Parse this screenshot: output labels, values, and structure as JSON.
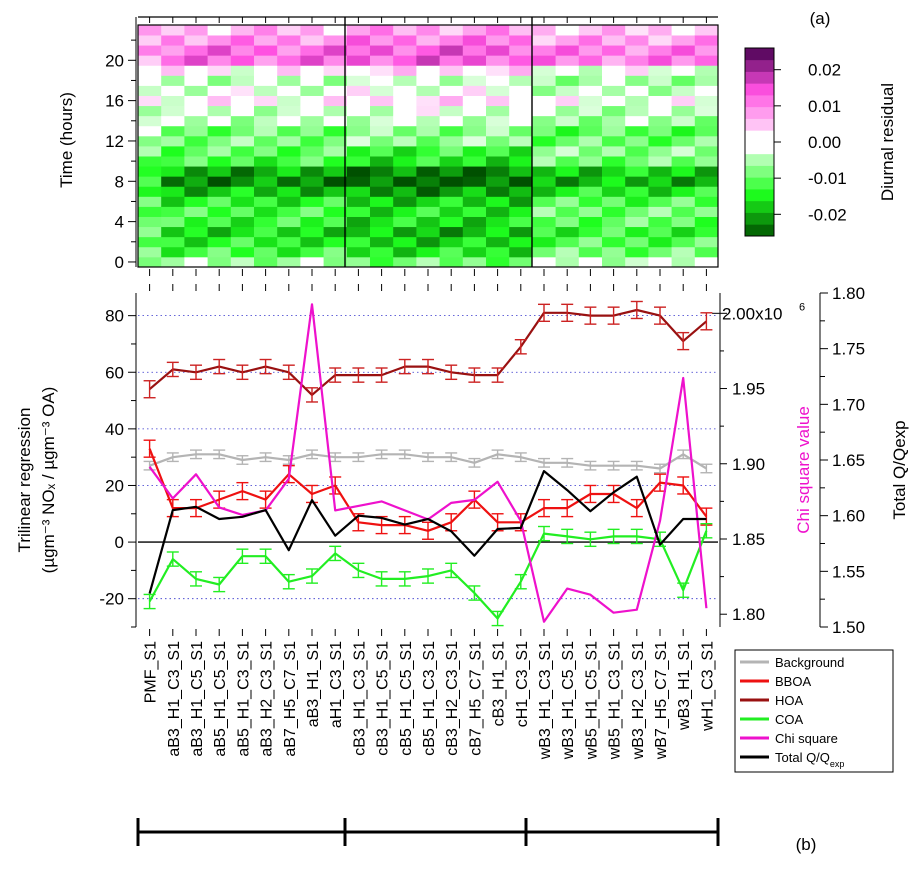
{
  "panel_labels": {
    "top": "(a)",
    "bottom": "(b)"
  },
  "colors": {
    "background": "#b4b4b4",
    "bboa": "#ee1111",
    "hoa": "#991111",
    "coa": "#22ee22",
    "chi": "#ee11cc",
    "q": "#000000",
    "gridline": "#3333cc"
  },
  "chart_data": [
    {
      "type": "heatmap",
      "ylabel": "Time (hours)",
      "colorbar_label": "Diurnal residual",
      "colorbar_ticks": [
        "0.02",
        "0.01",
        "0.00",
        "-0.01",
        "-0.02"
      ],
      "colorbar_tick_values": [
        0.02,
        0.01,
        0.0,
        -0.01,
        -0.02
      ],
      "colorbar_range": [
        -0.026,
        0.026
      ],
      "y_ticks": [
        "0",
        "4",
        "8",
        "12",
        "16",
        "20"
      ],
      "y_tick_values": [
        0,
        4,
        8,
        12,
        16,
        20
      ],
      "ylim": [
        -0.5,
        23.5
      ],
      "row_profile": [
        -0.006,
        -0.012,
        -0.014,
        -0.016,
        -0.013,
        -0.012,
        -0.014,
        -0.018,
        -0.022,
        -0.02,
        -0.012,
        -0.01,
        -0.008,
        -0.009,
        -0.004,
        -0.003,
        0.001,
        -0.002,
        -0.004,
        0.001,
        0.012,
        0.012,
        0.009,
        0.006
      ],
      "group_offsets": [
        0.0,
        -0.003,
        0.003
      ],
      "group_size": 8
    },
    {
      "type": "line",
      "ylabel_lines": [
        "Trilinear regression",
        "(µgm⁻³ NOₓ / µgm⁻³ OA)"
      ],
      "ylim": [
        -30,
        88
      ],
      "y_ticks": [
        "-20",
        "0",
        "20",
        "40",
        "60",
        "80"
      ],
      "y_tick_values": [
        -20,
        0,
        20,
        40,
        60,
        80
      ],
      "gridlines": [
        -20,
        20,
        40,
        60,
        80
      ],
      "categories": [
        "PMF_S1",
        "aB3_H1_C3_S1",
        "aB3_H1_C5_S1",
        "aB5_H1_C5_S1",
        "aB5_H1_C3_S1",
        "aB3_H2_C3_S1",
        "aB7_H5_C7_S1",
        "aB3_H1_S1",
        "aH1_C3_S1",
        "cB3_H1_C3_S1",
        "cB3_H1_C5_S1",
        "cB5_H1_C5_S1",
        "cB5_H1_C3_S1",
        "cB3_H2_C3_S1",
        "cB7_H5_C7_S1",
        "cB3_H1_S1",
        "cH1_C3_S1",
        "wB3_H1_C3_S1",
        "wB3_H1_C5_S1",
        "wB5_H1_C5_S1",
        "wB5_H1_C3_S1",
        "wB3_H2_C3_S1",
        "wB7_H5_C7_S1",
        "wB3_H1_S1",
        "wH1_C3_S1"
      ],
      "series": [
        {
          "name": "Background",
          "color_key": "background",
          "axis": "left",
          "errorbars": true,
          "values": [
            27,
            30,
            31,
            31,
            29,
            30,
            29,
            31,
            30,
            30,
            31,
            31,
            30,
            30,
            28,
            31,
            30,
            28,
            28,
            27,
            27,
            27,
            26,
            31,
            26
          ],
          "errors": [
            1.5,
            1.5,
            1.5,
            1.5,
            1.5,
            1.5,
            1.5,
            1.5,
            1.5,
            1.5,
            1.5,
            1.5,
            1.5,
            1.5,
            1.5,
            1.5,
            1.5,
            1.5,
            1.5,
            1.5,
            1.5,
            1.5,
            1.5,
            1.5,
            1.5
          ]
        },
        {
          "name": "BBOA",
          "color_key": "bboa",
          "axis": "left",
          "errorbars": true,
          "values": [
            33,
            12,
            12,
            15,
            18,
            15,
            24,
            17,
            20,
            7,
            6,
            6,
            4,
            7,
            15,
            7,
            7,
            12,
            12,
            17,
            17,
            12,
            21,
            20,
            9
          ],
          "errors": [
            3,
            3,
            3,
            3,
            3,
            3,
            3,
            3,
            3,
            3,
            3,
            3,
            3,
            3,
            3,
            3,
            3,
            3,
            3,
            3,
            3,
            3,
            3,
            3,
            3
          ]
        },
        {
          "name": "HOA",
          "color_key": "hoa",
          "axis": "left",
          "errorbars": true,
          "values": [
            54,
            61,
            60,
            62,
            60,
            62,
            60,
            52,
            59,
            59,
            59,
            62,
            62,
            60,
            59,
            59,
            69,
            81,
            81,
            80,
            80,
            82,
            80,
            71,
            78
          ],
          "errors": [
            3,
            2.5,
            2.5,
            2.5,
            2.5,
            2.5,
            2.5,
            2.5,
            2.5,
            2.5,
            2.5,
            2.5,
            2.5,
            2.5,
            2.5,
            2.5,
            2.5,
            3,
            3,
            3,
            3,
            3,
            3,
            3,
            3
          ]
        },
        {
          "name": "COA",
          "color_key": "coa",
          "axis": "left",
          "errorbars": true,
          "values": [
            -21,
            -6,
            -13,
            -15,
            -5,
            -5,
            -14,
            -12,
            -4,
            -10,
            -13,
            -13,
            -12,
            -10,
            -18,
            -27,
            -14,
            3,
            2,
            1,
            2,
            2,
            1,
            -17,
            4
          ],
          "errors": [
            2.5,
            2.5,
            2.5,
            2.5,
            2.5,
            2.5,
            2.5,
            2.5,
            2.5,
            2.5,
            2.5,
            2.5,
            2.5,
            2.5,
            2.5,
            2.5,
            2.5,
            2.5,
            2.5,
            2.5,
            2.5,
            2.5,
            2.5,
            2.5,
            2.5
          ]
        },
        {
          "name": "Chi square",
          "color_key": "chi",
          "axis": "chi",
          "values": [
            1898000,
            1877000,
            1893000,
            1871000,
            1866000,
            1869000,
            1890000,
            2006000,
            1869000,
            1872000,
            1875000,
            1869000,
            1863000,
            1874000,
            1876000,
            1888000,
            1862000,
            1795000,
            1817000,
            1813000,
            1801000,
            1803000,
            1862000,
            1957000,
            1804000
          ]
        },
        {
          "name": "Total Q/Q",
          "name_sub": "exp",
          "color_key": "q",
          "axis": "q",
          "values": [
            1.53,
            1.605,
            1.608,
            1.597,
            1.599,
            1.605,
            1.569,
            1.614,
            1.582,
            1.6,
            1.598,
            1.592,
            1.597,
            1.586,
            1.564,
            1.588,
            1.589,
            1.64,
            1.623,
            1.604,
            1.621,
            1.635,
            1.574,
            1.597,
            1.597
          ]
        }
      ],
      "chi_axis": {
        "label": "Chi square value",
        "ylim": [
          1791500,
          2013500
        ],
        "tick_labels": [
          "1.80",
          "1.85",
          "1.90",
          "1.95"
        ],
        "tick_values": [
          1800000,
          1850000,
          1900000,
          1950000
        ],
        "top_label": "2.00x10",
        "top_label_exp": "6",
        "top_value": 2000000
      },
      "q_axis": {
        "label": "Total Q/Qexp",
        "ylim": [
          1.5,
          1.8
        ],
        "tick_labels": [
          "1.50",
          "1.55",
          "1.60",
          "1.65",
          "1.70",
          "1.75",
          "1.80"
        ],
        "tick_values": [
          1.5,
          1.55,
          1.6,
          1.65,
          1.7,
          1.75,
          1.8
        ]
      },
      "legend_position": "bottom-right, outside plot"
    }
  ]
}
